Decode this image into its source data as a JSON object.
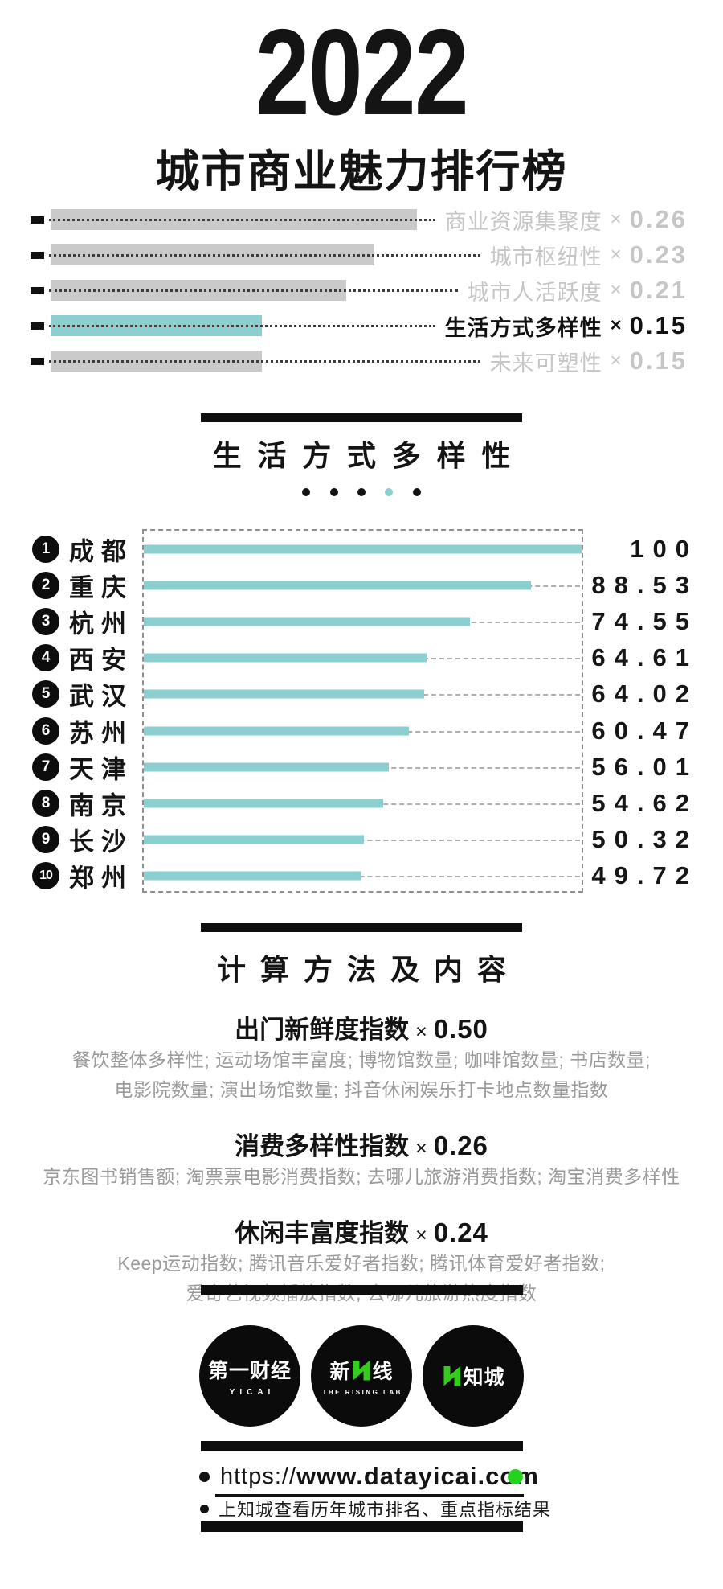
{
  "colors": {
    "teal": "#8BCFD1",
    "gray_bar": "#CACACA",
    "gray_text": "#C6C6C6",
    "black": "#111111",
    "green": "#25D31F",
    "logo_green": "#35CC1F"
  },
  "header": {
    "year": "2022",
    "title": "城市商业魅力排行榜"
  },
  "weights": {
    "items": [
      {
        "label": "商业资源集聚度",
        "times": "×",
        "value": "0.26",
        "highlighted": false
      },
      {
        "label": "城市枢纽性",
        "times": "×",
        "value": "0.23",
        "highlighted": false
      },
      {
        "label": "城市人活跃度",
        "times": "×",
        "value": "0.21",
        "highlighted": false
      },
      {
        "label": "生活方式多样性",
        "times": "×",
        "value": "0.15",
        "highlighted": true
      },
      {
        "label": "未来可塑性",
        "times": "×",
        "value": "0.15",
        "highlighted": false
      }
    ]
  },
  "section": {
    "title": "生活方式多样性",
    "page_dots": {
      "count": 5,
      "active_index": 3
    }
  },
  "chart_data": {
    "type": "bar",
    "orientation": "horizontal",
    "title": "生活方式多样性",
    "categories": [
      "成都",
      "重庆",
      "杭州",
      "西安",
      "武汉",
      "苏州",
      "天津",
      "南京",
      "长沙",
      "郑州"
    ],
    "ranks": [
      "1",
      "2",
      "3",
      "4",
      "5",
      "6",
      "7",
      "8",
      "9",
      "10"
    ],
    "values": [
      100,
      88.53,
      74.55,
      64.61,
      64.02,
      60.47,
      56.01,
      54.62,
      50.32,
      49.72
    ],
    "value_labels": [
      "100",
      "88.53",
      "74.55",
      "64.61",
      "64.02",
      "60.47",
      "56.01",
      "54.62",
      "50.32",
      "49.72"
    ],
    "xlim": [
      0,
      100
    ],
    "grid": "dashed-leader-lines",
    "legend_position": "none"
  },
  "methods": {
    "title": "计算方法及内容",
    "groups": [
      {
        "name": "出门新鲜度指数",
        "times": "×",
        "value": "0.50",
        "lines": [
          "餐饮整体多样性; 运动场馆丰富度; 博物馆数量; 咖啡馆数量; 书店数量;",
          "电影院数量; 演出场馆数量; 抖音休闲娱乐打卡地点数量指数"
        ]
      },
      {
        "name": "消费多样性指数",
        "times": "×",
        "value": "0.26",
        "lines": [
          "京东图书销售额; 淘票票电影消费指数; 去哪儿旅游消费指数; 淘宝消费多样性"
        ]
      },
      {
        "name": "休闲丰富度指数",
        "times": "×",
        "value": "0.24",
        "lines": [
          "Keep运动指数; 腾讯音乐爱好者指数; 腾讯体育爱好者指数;",
          "爱奇艺视频播放指数; 去哪儿旅游热度指数"
        ]
      }
    ]
  },
  "footer": {
    "logos": [
      {
        "name": "yicai",
        "line1": "第一财经",
        "line2": "YICAI"
      },
      {
        "name": "the-rising-lab",
        "line1_pre": "新",
        "line1_post": "线",
        "line2": "THE RISING LAB"
      },
      {
        "name": "zhicheng",
        "line1": "知城"
      }
    ],
    "link": {
      "prefix": "https://",
      "main": "www.datayicai.com"
    },
    "note": "上知城查看历年城市排名、重点指标结果"
  }
}
